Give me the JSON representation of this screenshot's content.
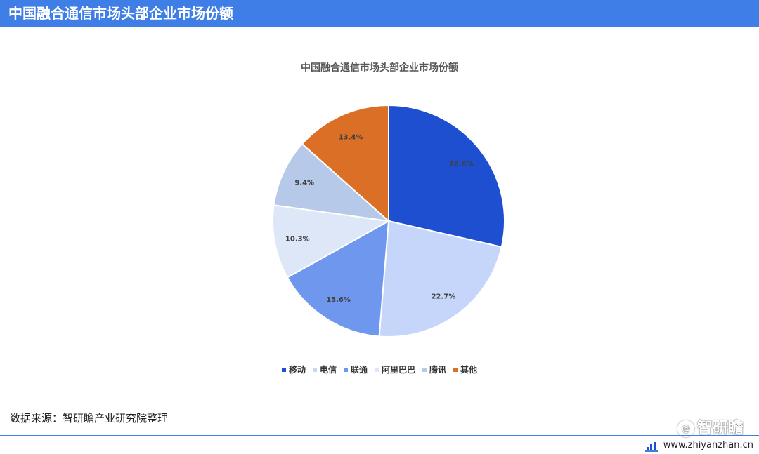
{
  "header": {
    "title": "中国融合通信市场头部企业市场份额"
  },
  "chart_data": {
    "type": "pie",
    "title": "中国融合通信市场头部企业市场份额",
    "categories": [
      "移动",
      "电信",
      "联通",
      "阿里巴巴",
      "腾讯",
      "其他"
    ],
    "values": [
      28.6,
      22.7,
      15.6,
      10.3,
      9.4,
      13.4
    ],
    "value_labels": [
      "28.6%",
      "22.7%",
      "15.6%",
      "10.3%",
      "9.4%",
      "13.4%"
    ],
    "colors": [
      "#1f4fd1",
      "#c5d6fa",
      "#6f97ee",
      "#dde7f8",
      "#b7c9e8",
      "#dc6f26"
    ],
    "legend_position": "bottom",
    "start_angle_deg": 0,
    "direction": "clockwise"
  },
  "footer": {
    "source": "数据来源：智研瞻产业研究院整理",
    "brand": "智研瞻",
    "brand_icon": "at-sign-icon",
    "site": "www.zhiyanzhan.cn"
  }
}
